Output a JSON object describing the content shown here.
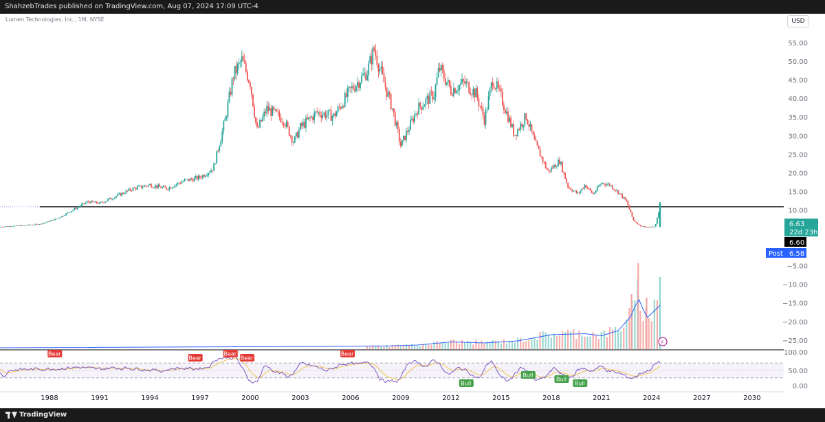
{
  "header": {
    "published_text": "ShahzebTrades published on TradingView.com, Aug 07, 2024 17:09 UTC-4"
  },
  "footer": {
    "brand": "TradingView"
  },
  "symbol_info": "Lumen Technologies, Inc., 1M, NYSE",
  "currency": "USD",
  "colors": {
    "up": "#26a69a",
    "down": "#ef5350",
    "rsi_line": "#7e57c2",
    "rsi_ma": "#f0c34e",
    "volume_ma": "#2962ff",
    "horizontal_line": "#000000"
  },
  "price_labels": {
    "last_price": "6.63",
    "countdown": "22d 23h",
    "line_price": "6.60",
    "post_label": "Post",
    "post_price": "6.58"
  },
  "chart_data": {
    "type": "candlestick",
    "timeframe": "1M",
    "x_ticks": [
      "1988",
      "1991",
      "1994",
      "1997",
      "2000",
      "2003",
      "2006",
      "2009",
      "2012",
      "2015",
      "2018",
      "2021",
      "2024",
      "2027",
      "2030"
    ],
    "price_axis_ticks": [
      "55.00",
      "50.00",
      "45.00",
      "40.00",
      "35.00",
      "30.00",
      "25.00",
      "20.00",
      "15.00",
      "10.00",
      "−5.00",
      "−10.00",
      "−15.00",
      "−20.00",
      "−25.00"
    ],
    "ylim": [
      -27,
      57
    ],
    "horizontal_line": 6.6,
    "price_path": [
      {
        "year": 1985.0,
        "price": 1.2
      },
      {
        "year": 1986.5,
        "price": 1.6
      },
      {
        "year": 1987.5,
        "price": 2.0
      },
      {
        "year": 1988.5,
        "price": 3.5
      },
      {
        "year": 1989.5,
        "price": 6.0
      },
      {
        "year": 1990.3,
        "price": 8.0
      },
      {
        "year": 1991.0,
        "price": 7.5
      },
      {
        "year": 1992.0,
        "price": 9.5
      },
      {
        "year": 1993.0,
        "price": 11.5
      },
      {
        "year": 1994.0,
        "price": 12.5
      },
      {
        "year": 1995.0,
        "price": 11.5
      },
      {
        "year": 1996.0,
        "price": 13.5
      },
      {
        "year": 1997.0,
        "price": 14.5
      },
      {
        "year": 1997.8,
        "price": 17.0
      },
      {
        "year": 1998.5,
        "price": 30.0
      },
      {
        "year": 1999.0,
        "price": 42.0
      },
      {
        "year": 1999.5,
        "price": 46.0
      },
      {
        "year": 2000.0,
        "price": 40.0
      },
      {
        "year": 2000.4,
        "price": 27.0
      },
      {
        "year": 2001.0,
        "price": 33.0
      },
      {
        "year": 2002.0,
        "price": 30.0
      },
      {
        "year": 2002.6,
        "price": 24.0
      },
      {
        "year": 2003.0,
        "price": 28.0
      },
      {
        "year": 2004.0,
        "price": 32.0
      },
      {
        "year": 2005.0,
        "price": 31.0
      },
      {
        "year": 2006.0,
        "price": 38.0
      },
      {
        "year": 2007.0,
        "price": 43.0
      },
      {
        "year": 2007.4,
        "price": 49.0
      },
      {
        "year": 2008.0,
        "price": 40.0
      },
      {
        "year": 2008.5,
        "price": 33.0
      },
      {
        "year": 2009.0,
        "price": 23.0
      },
      {
        "year": 2009.5,
        "price": 28.0
      },
      {
        "year": 2010.0,
        "price": 33.0
      },
      {
        "year": 2011.0,
        "price": 37.0
      },
      {
        "year": 2011.3,
        "price": 44.0
      },
      {
        "year": 2012.0,
        "price": 38.0
      },
      {
        "year": 2012.8,
        "price": 40.0
      },
      {
        "year": 2013.5,
        "price": 37.0
      },
      {
        "year": 2014.0,
        "price": 30.0
      },
      {
        "year": 2014.5,
        "price": 41.0
      },
      {
        "year": 2015.0,
        "price": 36.0
      },
      {
        "year": 2015.8,
        "price": 26.0
      },
      {
        "year": 2016.5,
        "price": 31.0
      },
      {
        "year": 2017.0,
        "price": 24.0
      },
      {
        "year": 2017.8,
        "price": 16.0
      },
      {
        "year": 2018.5,
        "price": 19.0
      },
      {
        "year": 2019.0,
        "price": 12.0
      },
      {
        "year": 2019.6,
        "price": 10.0
      },
      {
        "year": 2020.0,
        "price": 12.5
      },
      {
        "year": 2020.5,
        "price": 10.0
      },
      {
        "year": 2021.0,
        "price": 13.0
      },
      {
        "year": 2021.5,
        "price": 12.5
      },
      {
        "year": 2022.0,
        "price": 10.5
      },
      {
        "year": 2022.5,
        "price": 8.0
      },
      {
        "year": 2022.9,
        "price": 3.0
      },
      {
        "year": 2023.3,
        "price": 1.5
      },
      {
        "year": 2023.8,
        "price": 1.1
      },
      {
        "year": 2024.2,
        "price": 1.2
      },
      {
        "year": 2024.5,
        "price": 6.63
      }
    ],
    "volume_bars": [
      {
        "year": 2008,
        "height": 0.06
      },
      {
        "year": 2010,
        "height": 0.08
      },
      {
        "year": 2012,
        "height": 0.14
      },
      {
        "year": 2014,
        "height": 0.12
      },
      {
        "year": 2016,
        "height": 0.16
      },
      {
        "year": 2018,
        "height": 0.28
      },
      {
        "year": 2020,
        "height": 0.3
      },
      {
        "year": 2021,
        "height": 0.26
      },
      {
        "year": 2022,
        "height": 0.36
      },
      {
        "year": 2022.8,
        "height": 0.65
      },
      {
        "year": 2023.2,
        "height": 1.0
      },
      {
        "year": 2023.7,
        "height": 0.6
      },
      {
        "year": 2024.5,
        "height": 0.85
      }
    ],
    "rsi": {
      "ylim": [
        0,
        100
      ],
      "ticks": [
        "100.00",
        "50.00",
        "0.00"
      ],
      "upper_band": 70,
      "lower_band": 30
    },
    "signal_labels": [
      {
        "text": "Bear",
        "year": 1988.3,
        "type": "bear"
      },
      {
        "text": "Bear",
        "year": 1996.7,
        "type": "bear"
      },
      {
        "text": "Bear",
        "year": 1998.8,
        "type": "bear"
      },
      {
        "text": "Bear",
        "year": 1999.8,
        "type": "bear"
      },
      {
        "text": "Bear",
        "year": 2005.8,
        "type": "bear"
      },
      {
        "text": "Bull",
        "year": 2012.9,
        "type": "bull"
      },
      {
        "text": "Bull",
        "year": 2016.6,
        "type": "bull"
      },
      {
        "text": "Bull",
        "year": 2018.6,
        "type": "bull"
      },
      {
        "text": "Bull",
        "year": 2019.7,
        "type": "bull"
      }
    ]
  }
}
